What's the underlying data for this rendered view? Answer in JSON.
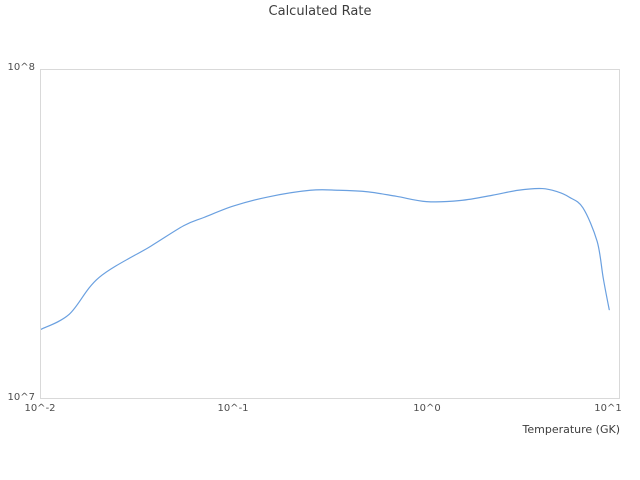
{
  "chart_data": {
    "type": "line",
    "title": "Calculated Rate",
    "xlabel": "Temperature (GK)",
    "ylabel": "",
    "x_scale": "log",
    "y_scale": "log",
    "xlim": [
      0.01,
      10
    ],
    "ylim": [
      10000000.0,
      100000000.0
    ],
    "grid": false,
    "legend": false,
    "x_tick_labels": [
      "10^-2",
      "10^-1",
      "10^0",
      "10^1"
    ],
    "y_tick_labels": [
      "10^7",
      "10^8"
    ],
    "series": [
      {
        "name": "Calculated Rate",
        "color": "#6aa0e0",
        "points": [
          [
            0.01,
            16200000.0
          ],
          [
            0.014,
            18000000.0
          ],
          [
            0.02,
            23300000.0
          ],
          [
            0.037,
            29000000.0
          ],
          [
            0.055,
            33500000.0
          ],
          [
            0.07,
            35500000.0
          ],
          [
            0.1,
            38500000.0
          ],
          [
            0.15,
            41000000.0
          ],
          [
            0.25,
            43000000.0
          ],
          [
            0.35,
            43000000.0
          ],
          [
            0.5,
            42500000.0
          ],
          [
            0.7,
            41200000.0
          ],
          [
            1.0,
            39700000.0
          ],
          [
            1.5,
            40000000.0
          ],
          [
            2.2,
            41500000.0
          ],
          [
            3.0,
            43000000.0
          ],
          [
            4.0,
            43500000.0
          ],
          [
            4.8,
            42500000.0
          ],
          [
            5.5,
            41000000.0
          ],
          [
            6.5,
            38000000.0
          ],
          [
            7.7,
            30000000.0
          ],
          [
            8.3,
            23000000.0
          ],
          [
            8.9,
            18600000.0
          ]
        ]
      }
    ]
  },
  "colors": {
    "line": "#6aa0e0",
    "plot_border": "#d9d9d9",
    "title_text": "#3d3d3d",
    "tick_text": "#4d4d4d"
  }
}
